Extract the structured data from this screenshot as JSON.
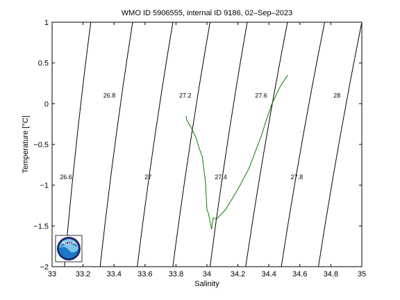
{
  "chart_data": {
    "type": "line",
    "title": "WMO ID 5906555, internal ID 9186, 02–Sep–2023",
    "xlabel": "Salinity",
    "ylabel": "Temperature [°C]",
    "xlim": [
      33,
      35
    ],
    "ylim": [
      -2,
      1
    ],
    "xticks": [
      33,
      33.2,
      33.4,
      33.6,
      33.8,
      34,
      34.2,
      34.4,
      34.6,
      34.8,
      35
    ],
    "yticks": [
      -2,
      -1.5,
      -1,
      -0.5,
      0,
      0.5,
      1
    ],
    "xtick_labels": [
      "33",
      "33.2",
      "33.4",
      "33.6",
      "33.8",
      "34",
      "34.2",
      "34.4",
      "34.6",
      "34.8",
      "35"
    ],
    "ytick_labels": [
      "−2",
      "−1.5",
      "−1",
      "−0.5",
      "0",
      "0.5",
      "1"
    ],
    "grid": false,
    "series": [
      {
        "color": "#008000",
        "x": [
          34.52,
          34.47,
          34.42,
          34.38,
          34.35,
          34.32,
          34.27,
          34.2,
          34.12,
          34.06,
          34.04,
          34.03,
          34.02,
          34.01,
          34.0,
          33.99,
          33.98,
          33.97,
          33.95,
          33.93,
          33.9,
          33.87,
          33.865,
          33.87
        ],
        "y": [
          0.35,
          0.2,
          0.0,
          -0.22,
          -0.4,
          -0.55,
          -0.8,
          -1.05,
          -1.3,
          -1.42,
          -1.4,
          -1.54,
          -1.45,
          -1.35,
          -1.3,
          -0.95,
          -0.8,
          -0.65,
          -0.55,
          -0.42,
          -0.3,
          -0.2,
          -0.15,
          -0.2
        ]
      }
    ],
    "density_contours": [
      {
        "label": "26.6",
        "x_at_top": 33.25,
        "x_at_bottom": 33.08,
        "label_x": 33.09,
        "label_y": -0.9
      },
      {
        "label": "26.8",
        "x_at_top": 33.52,
        "x_at_bottom": 33.31,
        "label_x": 33.37,
        "label_y": 0.1
      },
      {
        "label": "27",
        "x_at_top": 33.78,
        "x_at_bottom": 33.55,
        "label_x": 33.62,
        "label_y": -0.9
      },
      {
        "label": "27.2",
        "x_at_top": 34.02,
        "x_at_bottom": 33.78,
        "label_x": 33.86,
        "label_y": 0.1
      },
      {
        "label": "27.4",
        "x_at_top": 34.26,
        "x_at_bottom": 34.02,
        "label_x": 34.09,
        "label_y": -0.9
      },
      {
        "label": "27.6",
        "x_at_top": 34.52,
        "x_at_bottom": 34.25,
        "label_x": 34.35,
        "label_y": 0.1
      },
      {
        "label": "27.8",
        "x_at_top": 34.76,
        "x_at_bottom": 34.48,
        "label_x": 34.58,
        "label_y": -0.9
      },
      {
        "label": "28",
        "x_at_top": 35.0,
        "x_at_bottom": 34.72,
        "label_x": 34.84,
        "label_y": 0.1
      }
    ]
  },
  "logo": {
    "text": "NOAA",
    "colors": {
      "navy": "#1a2a6c",
      "blue": "#1e78c8",
      "light": "#7fc4ee"
    }
  }
}
